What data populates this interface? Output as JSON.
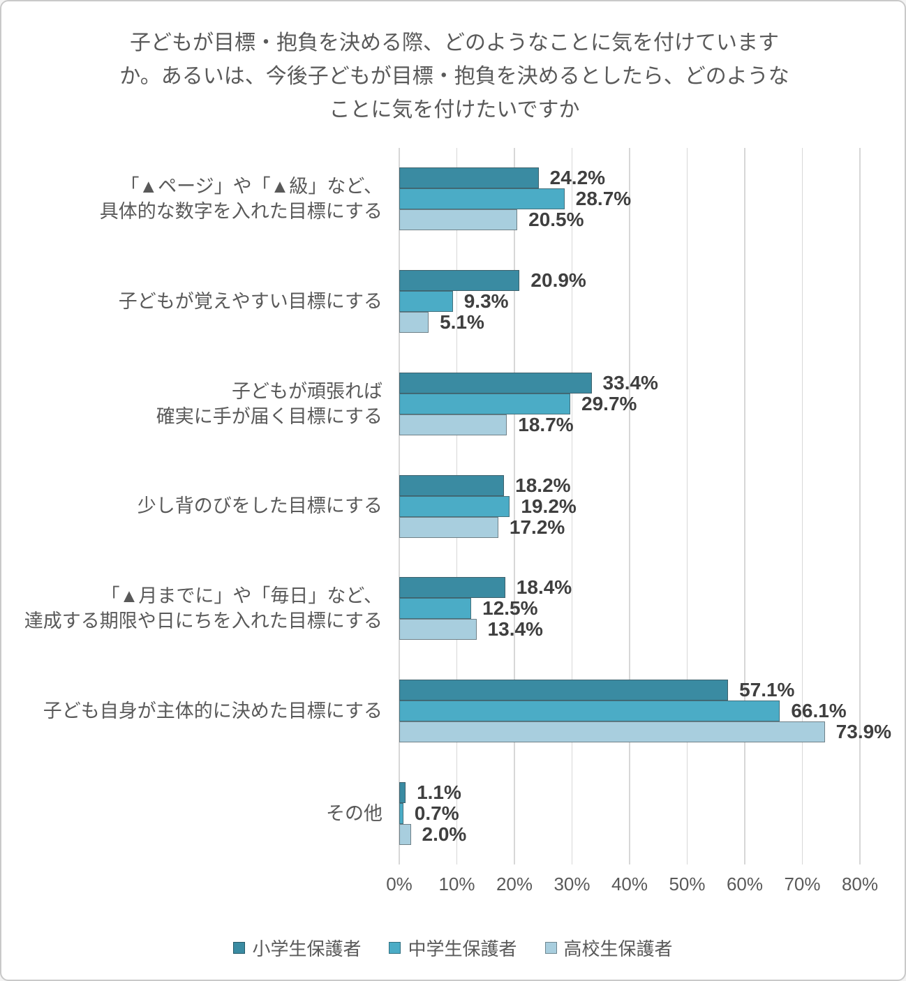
{
  "title": {
    "lines": [
      "子どもが目標・抱負を決める際、どのようなことに気を付けています",
      "か。あるいは、今後子どもが目標・抱負を決めるとしたら、どのような",
      "ことに気を付けたいですか"
    ]
  },
  "chart_data": {
    "type": "bar",
    "orientation": "horizontal",
    "title": "子どもが目標・抱負を決める際、どのようなことに気を付けていますか。あるいは、今後子どもが目標・抱負を決めるとしたら、どのようなことに気を付けたいですか",
    "categories": [
      {
        "lines": [
          "「▲ページ」や「▲級」など、",
          "具体的な数字を入れた目標にする"
        ]
      },
      {
        "lines": [
          "子どもが覚えやすい目標にする"
        ]
      },
      {
        "lines": [
          "子どもが頑張れば",
          "確実に手が届く目標にする"
        ]
      },
      {
        "lines": [
          "少し背のびをした目標にする"
        ]
      },
      {
        "lines": [
          "「▲月までに」や「毎日」など、",
          "達成する期限や日にちを入れた目標にする"
        ]
      },
      {
        "lines": [
          "子ども自身が主体的に決めた目標にする"
        ]
      },
      {
        "lines": [
          "その他"
        ]
      }
    ],
    "series": [
      {
        "name": "小学生保護者",
        "color": "#3A8BA2",
        "values": [
          24.2,
          20.9,
          33.4,
          18.2,
          18.4,
          57.1,
          1.1
        ]
      },
      {
        "name": "中学生保護者",
        "color": "#4BACC6",
        "values": [
          28.7,
          9.3,
          29.7,
          19.2,
          12.5,
          66.1,
          0.7
        ]
      },
      {
        "name": "高校生保護者",
        "color": "#A8CEDE",
        "values": [
          20.5,
          5.1,
          18.7,
          17.2,
          13.4,
          73.9,
          2.0
        ]
      }
    ],
    "x_axis": {
      "tick_labels": [
        "0%",
        "10%",
        "20%",
        "30%",
        "40%",
        "50%",
        "60%",
        "70%",
        "80%"
      ],
      "min": 0,
      "max": 80,
      "grid": true
    },
    "value_label_suffix": "%",
    "legend_position": "bottom"
  },
  "style": {
    "grid_color": "#d7d7d7",
    "text_color": "#595959",
    "value_color": "#3f3f3f",
    "frame_border": "#c9c9c9"
  }
}
